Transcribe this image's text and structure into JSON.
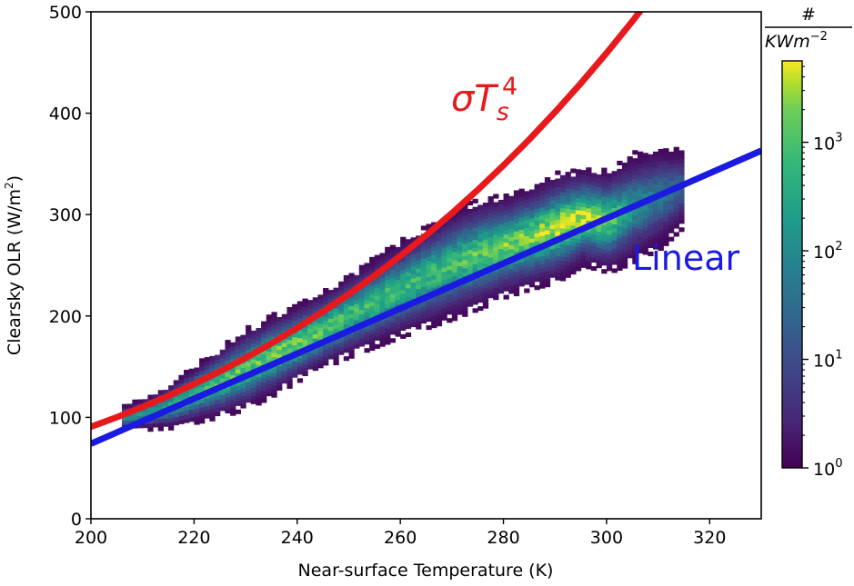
{
  "chart_data": {
    "type": "heatmap",
    "title": "",
    "xlabel": "Near-surface Temperature (K)",
    "ylabel_main": "Clearsky OLR (W/m",
    "ylabel_sup": "2",
    "ylabel_close": ")",
    "xlim": [
      200,
      330
    ],
    "ylim": [
      0,
      500
    ],
    "xticks": [
      200,
      220,
      240,
      260,
      280,
      300,
      320
    ],
    "yticks": [
      0,
      100,
      200,
      300,
      400,
      500
    ],
    "grid": false,
    "density_ridge": {
      "x": [
        206,
        210,
        215,
        220,
        225,
        230,
        235,
        240,
        245,
        250,
        255,
        260,
        265,
        270,
        275,
        280,
        285,
        290,
        295,
        300,
        305,
        310,
        314
      ],
      "y_center": [
        98,
        102,
        110,
        122,
        134,
        147,
        160,
        173,
        186,
        200,
        213,
        226,
        238,
        250,
        260,
        268,
        276,
        286,
        296,
        292,
        306,
        316,
        325
      ],
      "spread": [
        8,
        10,
        14,
        18,
        22,
        25,
        25,
        24,
        24,
        26,
        28,
        30,
        32,
        34,
        34,
        32,
        32,
        34,
        30,
        32,
        34,
        32,
        26
      ],
      "intensity": [
        0.5,
        0.6,
        0.7,
        0.75,
        0.8,
        0.82,
        0.85,
        0.85,
        0.8,
        0.78,
        0.76,
        0.75,
        0.75,
        0.78,
        0.82,
        0.85,
        0.9,
        0.95,
        1.0,
        0.85,
        0.55,
        0.45,
        0.35
      ]
    },
    "series": [
      {
        "name": "sigmaTs4",
        "label_main": "σT",
        "label_sub": "s",
        "label_sup": "4",
        "color": "#e8191c",
        "formula": "5.67e-8*T^4",
        "x": [
          200,
          205,
          210,
          215,
          220,
          225,
          230,
          235,
          240,
          245,
          250,
          255,
          260,
          265,
          270,
          275,
          280,
          285,
          290,
          295,
          300,
          305,
          308.5
        ]
      },
      {
        "name": "linear",
        "label": "Linear",
        "color": "#1a1ae0",
        "x": [
          200,
          330
        ],
        "y": [
          74,
          363
        ]
      }
    ],
    "colorbar": {
      "title_top": "#",
      "title_bottom": "KWm",
      "title_bottom_sup": "−2",
      "scale": "log",
      "min_exp": 0,
      "max_exp": 3.75,
      "ticks": [
        {
          "base": "10",
          "exp": "0",
          "value_exp": 0
        },
        {
          "base": "10",
          "exp": "1",
          "value_exp": 1
        },
        {
          "base": "10",
          "exp": "2",
          "value_exp": 2
        },
        {
          "base": "10",
          "exp": "3",
          "value_exp": 3
        }
      ],
      "colormap": "viridis"
    }
  }
}
